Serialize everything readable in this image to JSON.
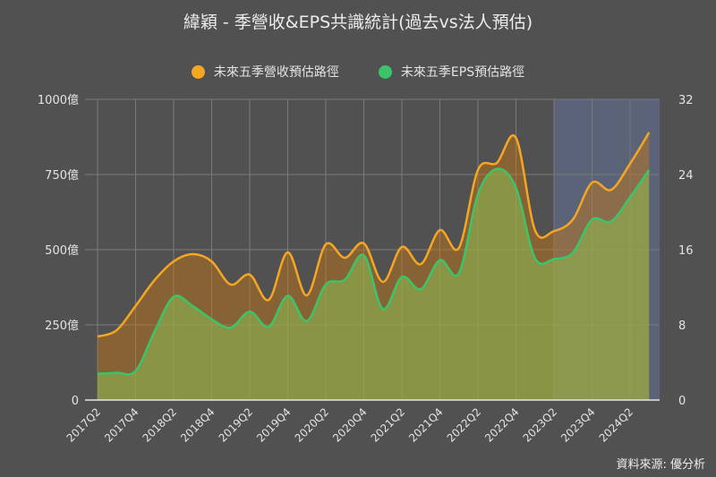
{
  "title": "緯穎 - 季營收&EPS共識統計(過去vs法人預估)",
  "legend": [
    {
      "label": "未來五季營收預估路徑",
      "color": "#f5a623"
    },
    {
      "label": "未來五季EPS預估路徑",
      "color": "#3cc46a"
    }
  ],
  "source": "資料來源: 優分析",
  "colors": {
    "background": "#515151",
    "forecast_band": "#5a6378",
    "revenue_line": "#f5a623",
    "eps_line": "#3cc46a",
    "grid": "#7a7a7a"
  },
  "chart_data": {
    "type": "area",
    "title": "緯穎 - 季營收&EPS共識統計(過去vs法人預估)",
    "x": [
      "2017Q2",
      "2017Q3",
      "2017Q4",
      "2018Q1",
      "2018Q2",
      "2018Q3",
      "2018Q4",
      "2019Q1",
      "2019Q2",
      "2019Q3",
      "2019Q4",
      "2020Q1",
      "2020Q2",
      "2020Q3",
      "2020Q4",
      "2021Q1",
      "2021Q2",
      "2021Q3",
      "2021Q4",
      "2022Q1",
      "2022Q2",
      "2022Q3",
      "2022Q4",
      "2023Q1",
      "2023Q2",
      "2023Q3",
      "2023Q4",
      "2024Q1",
      "2024Q2",
      "2024Q3"
    ],
    "x_tick_labels": [
      "2017Q2",
      "2017Q4",
      "2018Q2",
      "2018Q4",
      "2019Q2",
      "2019Q4",
      "2020Q2",
      "2020Q4",
      "2021Q2",
      "2021Q4",
      "2022Q2",
      "2022Q4",
      "2023Q2",
      "2023Q4",
      "2024Q2"
    ],
    "series": [
      {
        "name": "未來五季營收預估路徑",
        "axis": "left",
        "unit": "億",
        "values": [
          211,
          232,
          313,
          399,
          461,
          485,
          461,
          384,
          417,
          333,
          491,
          348,
          518,
          473,
          521,
          393,
          509,
          452,
          565,
          506,
          765,
          789,
          872,
          565,
          562,
          601,
          723,
          699,
          786,
          890
        ]
      },
      {
        "name": "未來五季EPS預估路徑",
        "axis": "right",
        "unit": "",
        "values": [
          2.8,
          2.9,
          3.1,
          7.3,
          11.0,
          10.0,
          8.6,
          7.7,
          9.4,
          7.8,
          11.1,
          8.4,
          12.3,
          12.8,
          15.4,
          9.7,
          13.1,
          11.8,
          14.9,
          13.5,
          21.9,
          24.6,
          22.6,
          15.1,
          15.0,
          15.7,
          19.2,
          19.0,
          21.6,
          24.5
        ]
      }
    ],
    "left_axis": {
      "ticks": [
        "0",
        "250億",
        "500億",
        "750億",
        "1000億"
      ],
      "range": [
        0,
        1000
      ]
    },
    "right_axis": {
      "ticks": [
        "0",
        "8",
        "16",
        "24",
        "32"
      ],
      "range": [
        0,
        32
      ]
    },
    "forecast_start": "2023Q2",
    "grid": true,
    "legend_position": "top"
  }
}
